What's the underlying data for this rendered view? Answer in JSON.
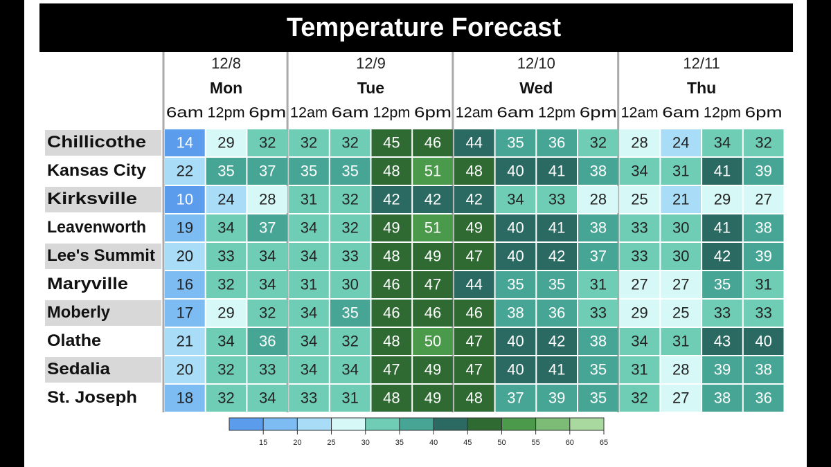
{
  "chart_data": {
    "type": "heatmap",
    "title": "Temperature Forecast",
    "days": [
      {
        "date": "12/8",
        "day": "Mon",
        "times": [
          "6am",
          "12pm",
          "6pm"
        ]
      },
      {
        "date": "12/9",
        "day": "Tue",
        "times": [
          "12am",
          "6am",
          "12pm",
          "6pm"
        ]
      },
      {
        "date": "12/10",
        "day": "Wed",
        "times": [
          "12am",
          "6am",
          "12pm",
          "6pm"
        ]
      },
      {
        "date": "12/11",
        "day": "Thu",
        "times": [
          "12am",
          "6am",
          "12pm",
          "6pm"
        ]
      }
    ],
    "rows": [
      "Chillicothe",
      "Kansas City",
      "Kirksville",
      "Leavenworth",
      "Lee's Summit",
      "Maryville",
      "Moberly",
      "Olathe",
      "Sedalia",
      "St. Joseph"
    ],
    "values": [
      [
        14,
        29,
        32,
        32,
        32,
        45,
        46,
        44,
        35,
        36,
        32,
        28,
        24,
        34,
        32
      ],
      [
        22,
        35,
        37,
        35,
        35,
        48,
        51,
        48,
        40,
        41,
        38,
        34,
        31,
        41,
        39
      ],
      [
        10,
        24,
        28,
        31,
        32,
        42,
        42,
        42,
        34,
        33,
        28,
        25,
        21,
        29,
        27
      ],
      [
        19,
        34,
        37,
        34,
        32,
        49,
        51,
        49,
        40,
        41,
        38,
        33,
        30,
        41,
        38
      ],
      [
        20,
        33,
        34,
        34,
        33,
        48,
        49,
        47,
        40,
        42,
        37,
        33,
        30,
        42,
        39
      ],
      [
        16,
        32,
        34,
        31,
        30,
        46,
        47,
        44,
        35,
        35,
        31,
        27,
        27,
        35,
        31
      ],
      [
        17,
        29,
        32,
        34,
        35,
        46,
        46,
        46,
        38,
        36,
        33,
        29,
        25,
        33,
        33
      ],
      [
        21,
        34,
        36,
        34,
        32,
        48,
        50,
        47,
        40,
        42,
        38,
        34,
        31,
        43,
        40
      ],
      [
        20,
        32,
        33,
        34,
        34,
        47,
        49,
        47,
        40,
        41,
        35,
        31,
        28,
        39,
        38
      ],
      [
        18,
        32,
        34,
        33,
        31,
        48,
        49,
        48,
        37,
        39,
        35,
        32,
        27,
        38,
        36
      ]
    ],
    "colorbar": {
      "lim": [
        10,
        65
      ],
      "ticks": [
        15,
        20,
        25,
        30,
        35,
        40,
        45,
        50,
        55,
        60,
        65
      ],
      "colors": [
        "#5b9cec",
        "#7cbcf2",
        "#a9dcf6",
        "#d6f8f7",
        "#6fcdb6",
        "#47a595",
        "#2b6a62",
        "#2e6a32",
        "#4b9a4b",
        "#7cbc76",
        "#aad9a0"
      ]
    }
  }
}
